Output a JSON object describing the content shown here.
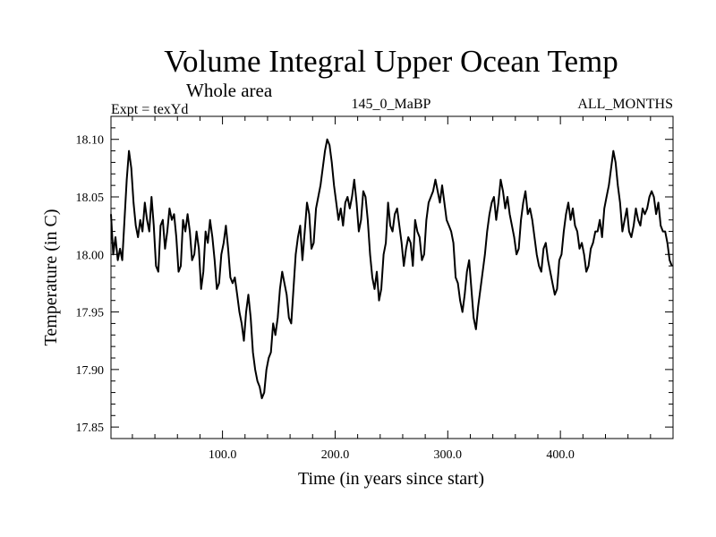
{
  "header": {
    "title": "Volume Integral Upper Ocean Temp",
    "subtitle": "Whole area",
    "expt_label": "Expt = texYd",
    "run_label": "145_0_MaBP",
    "months_label": "ALL_MONTHS"
  },
  "chart_data": {
    "type": "line",
    "title": "Volume Integral Upper Ocean Temp",
    "subtitle": "Whole area",
    "xlabel": "Time (in years since start)",
    "ylabel": "Temperature (in C)",
    "xlim": [
      1,
      500
    ],
    "ylim": [
      17.84,
      18.12
    ],
    "x_ticks": [
      100,
      200,
      300,
      400
    ],
    "x_tick_labels": [
      "100.0",
      "200.0",
      "300.0",
      "400.0"
    ],
    "y_ticks": [
      17.85,
      17.9,
      17.95,
      18.0,
      18.05,
      18.1
    ],
    "y_tick_labels": [
      "17.85",
      "17.90",
      "17.95",
      "18.00",
      "18.05",
      "18.10"
    ],
    "grid": false,
    "line_color": "#000000",
    "series": [
      {
        "x": [
          1,
          3,
          5,
          7,
          9,
          11,
          13,
          15,
          17,
          19,
          21,
          23,
          25,
          27,
          29,
          31,
          33,
          35,
          37,
          39,
          41,
          43,
          45,
          47,
          49,
          51,
          53,
          55,
          57,
          59,
          61,
          63,
          65,
          67,
          69,
          71,
          73,
          75,
          77,
          79,
          81,
          83,
          85,
          87,
          89,
          91,
          93,
          95,
          97,
          99,
          101,
          103,
          105,
          107,
          109,
          111,
          113,
          115,
          117,
          119,
          121,
          123,
          125,
          127,
          129,
          131,
          133,
          135,
          137,
          139,
          141,
          143,
          145,
          147,
          149,
          151,
          153,
          155,
          157,
          159,
          161,
          163,
          165,
          167,
          169,
          171,
          173,
          175,
          177,
          179,
          181,
          183,
          185,
          187,
          189,
          191,
          193,
          195,
          197,
          199,
          201,
          203,
          205,
          207,
          209,
          211,
          213,
          215,
          217,
          219,
          221,
          223,
          225,
          227,
          229,
          231,
          233,
          235,
          237,
          239,
          241,
          243,
          245,
          247,
          249,
          251,
          253,
          255,
          257,
          259,
          261,
          263,
          265,
          267,
          269,
          271,
          273,
          275,
          277,
          279,
          281,
          283,
          285,
          287,
          289,
          291,
          293,
          295,
          297,
          299,
          301,
          303,
          305,
          307,
          309,
          311,
          313,
          315,
          317,
          319,
          321,
          323,
          325,
          327,
          329,
          331,
          333,
          335,
          337,
          339,
          341,
          343,
          345,
          347,
          349,
          351,
          353,
          355,
          357,
          359,
          361,
          363,
          365,
          367,
          369,
          371,
          373,
          375,
          377,
          379,
          381,
          383,
          385,
          387,
          389,
          391,
          393,
          395,
          397,
          399,
          401,
          403,
          405,
          407,
          409,
          411,
          413,
          415,
          417,
          419,
          421,
          423,
          425,
          427,
          429,
          431,
          433,
          435,
          437,
          439,
          441,
          443,
          445,
          447,
          449,
          451,
          453,
          455,
          457,
          459,
          461,
          463,
          465,
          467,
          469,
          471,
          473,
          475,
          477,
          479,
          481,
          483,
          485,
          487,
          489,
          491,
          493,
          495,
          497,
          499
        ],
        "y": [
          18.035,
          18.0,
          18.015,
          17.995,
          18.005,
          17.995,
          18.03,
          18.065,
          18.09,
          18.075,
          18.045,
          18.025,
          18.015,
          18.03,
          18.02,
          18.045,
          18.03,
          18.02,
          18.05,
          18.025,
          17.99,
          17.985,
          18.025,
          18.03,
          18.005,
          18.02,
          18.04,
          18.03,
          18.035,
          18.015,
          17.985,
          17.99,
          18.03,
          18.02,
          18.035,
          18.02,
          17.995,
          18.0,
          18.02,
          18.005,
          17.97,
          17.985,
          18.02,
          18.01,
          18.03,
          18.015,
          17.995,
          17.97,
          17.975,
          18.0,
          18.01,
          18.025,
          18.005,
          17.98,
          17.975,
          17.98,
          17.965,
          17.95,
          17.94,
          17.925,
          17.95,
          17.965,
          17.945,
          17.915,
          17.9,
          17.89,
          17.885,
          17.875,
          17.88,
          17.9,
          17.91,
          17.915,
          17.94,
          17.93,
          17.945,
          17.97,
          17.985,
          17.975,
          17.965,
          17.945,
          17.94,
          17.97,
          18.0,
          18.015,
          18.025,
          17.995,
          18.02,
          18.045,
          18.035,
          18.005,
          18.01,
          18.04,
          18.05,
          18.06,
          18.075,
          18.09,
          18.1,
          18.095,
          18.08,
          18.06,
          18.045,
          18.03,
          18.04,
          18.025,
          18.045,
          18.05,
          18.04,
          18.05,
          18.065,
          18.045,
          18.02,
          18.03,
          18.055,
          18.05,
          18.03,
          18.0,
          17.98,
          17.97,
          17.985,
          17.96,
          17.97,
          18.0,
          18.01,
          18.045,
          18.025,
          18.02,
          18.035,
          18.04,
          18.025,
          18.01,
          17.99,
          18.005,
          18.015,
          18.01,
          17.99,
          18.03,
          18.02,
          18.015,
          17.995,
          18.0,
          18.03,
          18.045,
          18.05,
          18.055,
          18.065,
          18.055,
          18.045,
          18.06,
          18.045,
          18.03,
          18.025,
          18.02,
          18.01,
          17.98,
          17.975,
          17.96,
          17.95,
          17.965,
          17.985,
          17.995,
          17.97,
          17.945,
          17.935,
          17.955,
          17.97,
          17.985,
          18.0,
          18.02,
          18.035,
          18.045,
          18.05,
          18.03,
          18.045,
          18.065,
          18.055,
          18.04,
          18.05,
          18.035,
          18.025,
          18.015,
          18.0,
          18.005,
          18.03,
          18.045,
          18.055,
          18.035,
          18.04,
          18.03,
          18.015,
          18.0,
          17.99,
          17.985,
          18.005,
          18.01,
          17.995,
          17.985,
          17.975,
          17.965,
          17.97,
          17.995,
          18.0,
          18.02,
          18.035,
          18.045,
          18.03,
          18.04,
          18.025,
          18.02,
          18.005,
          18.01,
          18.0,
          17.985,
          17.99,
          18.005,
          18.01,
          18.02,
          18.02,
          18.03,
          18.015,
          18.04,
          18.05,
          18.06,
          18.075,
          18.09,
          18.08,
          18.06,
          18.045,
          18.02,
          18.03,
          18.04,
          18.02,
          18.015,
          18.025,
          18.04,
          18.03,
          18.025,
          18.04,
          18.035,
          18.04,
          18.05,
          18.055,
          18.05,
          18.035,
          18.045,
          18.025,
          18.02,
          18.02,
          18.01,
          17.995,
          17.99
        ]
      }
    ]
  }
}
